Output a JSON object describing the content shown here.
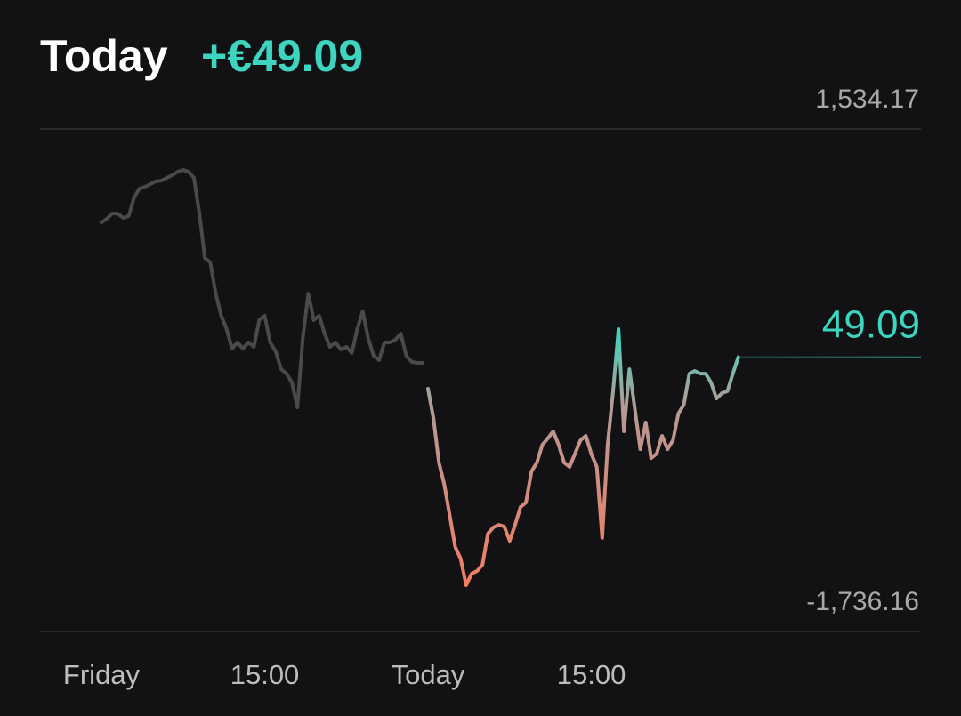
{
  "chart_data": {
    "type": "line",
    "title": "Today",
    "change_label": "+€49.09",
    "current_value": 49.09,
    "background": "#121214",
    "accent_color": "#3dd5c0",
    "x": [
      0,
      0.25,
      0.5,
      0.75,
      1,
      1.25,
      1.5,
      1.75,
      2,
      2.25,
      2.5,
      2.75,
      3,
      3.25,
      3.5,
      3.75,
      4,
      4.25,
      4.5,
      4.75,
      5,
      5.25,
      5.5,
      5.75,
      6,
      6.25,
      6.5,
      6.75,
      7,
      7.25,
      7.5,
      7.75,
      8,
      8.25,
      8.5,
      8.75,
      9,
      9.25,
      9.5,
      9.75,
      10,
      10.25,
      10.5,
      10.75,
      11,
      11.25,
      11.5,
      11.75,
      12,
      12.25,
      12.5,
      12.75,
      13,
      13.25,
      13.5,
      13.75,
      14,
      14.25,
      14.5,
      14.75,
      15,
      15.25,
      15.5,
      15.75,
      16,
      16.25,
      16.5,
      16.75,
      17,
      17.25,
      17.5,
      17.75,
      18,
      18.25,
      18.5,
      18.75,
      19,
      19.25,
      19.5,
      19.75,
      20,
      20.25,
      20.5,
      20.75,
      21,
      21.25,
      21.5,
      21.75,
      22,
      22.25,
      22.5,
      22.75,
      23,
      23.25,
      23.5,
      23.75,
      24,
      24.25,
      24.5,
      24.75,
      25,
      25.25,
      25.5,
      25.75,
      26,
      26.25,
      26.5,
      26.75,
      27,
      27.25,
      27.5,
      27.75,
      28,
      28.25,
      28.5,
      28.75,
      29,
      29.25
    ],
    "xlim": [
      -2.82,
      37.64
    ],
    "xticks": [
      {
        "value": 0,
        "label": "Friday"
      },
      {
        "value": 7.5,
        "label": "15:00"
      },
      {
        "value": 15,
        "label": "Today"
      },
      {
        "value": 22.5,
        "label": "15:00"
      }
    ],
    "ylim": [
      -1736.16,
      1534.17
    ],
    "yticks": [
      {
        "value": -1736.16,
        "label": "-1,736.16"
      },
      {
        "value": 1534.17,
        "label": "1,534.17"
      }
    ],
    "grid": true,
    "series": [
      {
        "color": "#4a4a4c",
        "values": [
          926,
          950,
          984,
          984,
          955,
          967,
          1088,
          1146,
          1158,
          1175,
          1193,
          1198,
          1216,
          1233,
          1256,
          1268,
          1256,
          1216,
          984,
          695,
          666,
          463,
          319,
          232,
          105,
          145,
          105,
          145,
          116,
          290,
          319,
          145,
          87,
          -29,
          -58,
          -116,
          -278,
          174,
          463,
          290,
          319,
          203,
          116,
          145,
          99,
          116,
          76,
          232,
          348,
          174,
          58,
          29,
          145,
          145,
          162,
          203,
          58,
          18,
          12,
          12,
          null,
          null,
          null,
          null,
          null,
          null,
          null,
          null,
          null,
          null,
          null,
          null,
          null,
          null,
          null,
          null,
          null,
          null,
          null,
          null,
          null,
          null,
          null,
          null,
          null,
          null,
          null,
          null,
          null,
          null,
          null,
          null,
          null,
          null,
          null,
          null,
          null,
          null,
          null,
          null,
          null,
          null,
          null,
          null,
          null,
          null,
          null,
          null,
          null,
          null,
          null,
          null,
          null,
          null,
          null,
          null,
          null,
          null
        ]
      },
      {
        "color": "#f47c62",
        "values": [
          null,
          null,
          null,
          null,
          null,
          null,
          null,
          null,
          null,
          null,
          null,
          null,
          null,
          null,
          null,
          null,
          null,
          null,
          null,
          null,
          null,
          null,
          null,
          null,
          null,
          null,
          null,
          null,
          null,
          null,
          null,
          null,
          null,
          null,
          null,
          null,
          null,
          null,
          null,
          null,
          null,
          null,
          null,
          null,
          null,
          null,
          null,
          null,
          null,
          null,
          null,
          null,
          null,
          null,
          null,
          null,
          null,
          null,
          null,
          null,
          -156,
          -347,
          -637,
          -781,
          -984,
          -1186,
          -1262,
          -1435,
          -1360,
          -1343,
          -1302,
          -1100,
          -1059,
          -1042,
          -1053,
          -1146,
          -1042,
          -926,
          -897,
          -694,
          -637,
          -521,
          -480,
          -434,
          -521,
          -637,
          -665,
          -579,
          -492,
          -463,
          -579,
          -665,
          -1128,
          -521,
          -173,
          232,
          -434,
          -29,
          -289,
          -550,
          -376,
          -608,
          -579,
          -463,
          -550,
          -492,
          -318,
          -260,
          -58,
          -40,
          -58,
          -58,
          -116,
          -220,
          -185,
          -173,
          -58,
          49.09
        ]
      }
    ]
  }
}
